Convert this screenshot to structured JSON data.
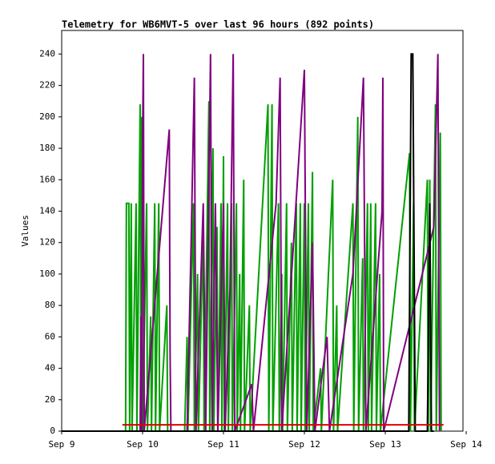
{
  "chart_data": {
    "type": "line",
    "title": "Telemetry for WB6MVT-5 over last 96 hours (892 points)",
    "y_label": "Values",
    "xlim": [
      9,
      13.96
    ],
    "ylim": [
      0,
      255
    ],
    "xticks": [
      {
        "value": 9,
        "label": "Sep 9"
      },
      {
        "value": 10,
        "label": "Sep 10"
      },
      {
        "value": 11,
        "label": "Sep 11"
      },
      {
        "value": 12,
        "label": "Sep 12"
      },
      {
        "value": 13,
        "label": "Sep 13"
      },
      {
        "value": 14,
        "label": "Sep 14"
      }
    ],
    "yticks": [
      0,
      20,
      40,
      60,
      80,
      100,
      120,
      140,
      160,
      180,
      200,
      220,
      240
    ],
    "series": [
      {
        "color": "#00a000",
        "x": [
          9.79,
          9.8,
          9.83,
          9.84,
          9.86,
          9.87,
          9.92,
          9.93,
          9.97,
          9.98,
          9.99,
          10.0,
          10.05,
          10.06,
          10.1,
          10.11,
          10.15,
          10.16,
          10.2,
          10.21,
          10.3,
          10.31,
          10.52,
          10.55,
          10.56,
          10.63,
          10.64,
          10.68,
          10.69,
          10.75,
          10.76,
          10.82,
          10.83,
          10.87,
          10.88,
          10.92,
          10.93,
          10.97,
          10.98,
          11.0,
          11.01,
          11.05,
          11.06,
          11.1,
          11.11,
          11.16,
          11.17,
          11.2,
          11.21,
          11.25,
          11.26,
          11.32,
          11.33,
          11.55,
          11.56,
          11.6,
          11.61,
          11.68,
          11.69,
          11.72,
          11.73,
          11.78,
          11.79,
          11.84,
          11.85,
          11.9,
          11.91,
          11.95,
          11.96,
          12.0,
          12.01,
          12.05,
          12.06,
          12.1,
          12.11,
          12.2,
          12.21,
          12.35,
          12.36,
          12.4,
          12.41,
          12.6,
          12.61,
          12.66,
          12.67,
          12.72,
          12.73,
          12.78,
          12.79,
          12.82,
          12.83,
          12.88,
          12.89,
          12.93,
          12.94,
          13.3,
          13.31,
          13.35,
          13.36,
          13.52,
          13.53,
          13.55,
          13.56,
          13.62,
          13.63,
          13.68,
          13.69
        ],
        "values": [
          0,
          145,
          145,
          0,
          145,
          0,
          145,
          0,
          208,
          0,
          200,
          0,
          145,
          0,
          73,
          0,
          145,
          0,
          145,
          0,
          80,
          0,
          0,
          60,
          0,
          145,
          0,
          100,
          0,
          128,
          0,
          210,
          0,
          180,
          0,
          130,
          0,
          145,
          0,
          175,
          0,
          145,
          0,
          145,
          0,
          145,
          0,
          100,
          0,
          160,
          0,
          80,
          0,
          208,
          0,
          208,
          0,
          145,
          0,
          100,
          0,
          145,
          0,
          120,
          0,
          145,
          0,
          145,
          0,
          145,
          0,
          145,
          0,
          165,
          0,
          40,
          0,
          160,
          0,
          80,
          0,
          145,
          0,
          200,
          0,
          110,
          0,
          145,
          0,
          145,
          0,
          145,
          0,
          100,
          0,
          177,
          0,
          145,
          0,
          160,
          0,
          160,
          0,
          208,
          0,
          190,
          0
        ]
      },
      {
        "color": "#800080",
        "x": [
          9.97,
          9.98,
          9.99,
          10.0,
          10.01,
          10.02,
          10.33,
          10.34,
          10.35,
          10.55,
          10.6,
          10.64,
          10.66,
          10.75,
          10.78,
          10.84,
          10.86,
          10.9,
          10.93,
          11.0,
          11.02,
          11.08,
          11.12,
          11.14,
          11.35,
          11.37,
          11.65,
          11.7,
          11.72,
          12.0,
          12.03,
          12.1,
          12.13,
          12.28,
          12.31,
          12.6,
          12.73,
          12.76,
          12.96,
          12.97,
          12.98,
          13.6,
          13.65,
          13.67
        ],
        "values": [
          0,
          73,
          0,
          185,
          240,
          0,
          192,
          50,
          0,
          0,
          120,
          225,
          0,
          145,
          0,
          240,
          0,
          145,
          0,
          145,
          0,
          90,
          240,
          0,
          30,
          0,
          145,
          225,
          0,
          230,
          0,
          120,
          0,
          60,
          0,
          100,
          225,
          0,
          140,
          225,
          0,
          130,
          240,
          0
        ]
      },
      {
        "color": "#000000",
        "x": [
          9.0,
          13.29,
          13.32,
          13.34,
          13.37,
          13.52,
          13.55,
          13.57,
          13.6
        ],
        "values": [
          0,
          0,
          240,
          240,
          0,
          0,
          145,
          0,
          0
        ]
      },
      {
        "color": "#e00000",
        "x": [
          9.75,
          13.72
        ],
        "values": [
          4,
          4
        ]
      }
    ]
  }
}
